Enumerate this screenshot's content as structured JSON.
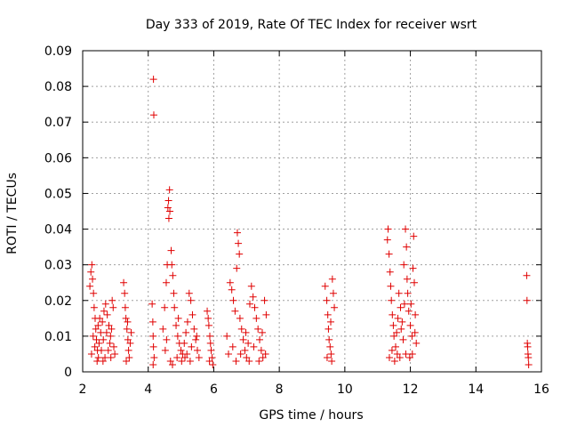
{
  "chart_data": {
    "type": "scatter",
    "title": "Day 333 of 2019, Rate Of TEC Index for receiver wsrt",
    "xlabel": "GPS time / hours",
    "ylabel": "ROTI / TECUs",
    "xlim": [
      2,
      16
    ],
    "ylim": [
      0,
      0.09
    ],
    "xticks": [
      2,
      4,
      6,
      8,
      10,
      12,
      14,
      16
    ],
    "xtick_labels": [
      "2",
      "4",
      "6",
      "8",
      "10",
      "12",
      "14",
      "16"
    ],
    "yticks": [
      0,
      0.01,
      0.02,
      0.03,
      0.04,
      0.05,
      0.06,
      0.07,
      0.08,
      0.09
    ],
    "ytick_labels": [
      "0",
      "0.01",
      "0.02",
      "0.03",
      "0.04",
      "0.05",
      "0.06",
      "0.07",
      "0.08",
      "0.09"
    ],
    "grid": true,
    "marker": "+",
    "series": [
      {
        "name": "ROTI",
        "color": "#e00000",
        "points": [
          [
            2.22,
            0.024
          ],
          [
            2.25,
            0.028
          ],
          [
            2.28,
            0.03
          ],
          [
            2.3,
            0.026
          ],
          [
            2.33,
            0.022
          ],
          [
            2.35,
            0.018
          ],
          [
            2.38,
            0.015
          ],
          [
            2.4,
            0.012
          ],
          [
            2.42,
            0.009
          ],
          [
            2.45,
            0.006
          ],
          [
            2.48,
            0.004
          ],
          [
            2.5,
            0.008
          ],
          [
            2.55,
            0.011
          ],
          [
            2.6,
            0.014
          ],
          [
            2.65,
            0.017
          ],
          [
            2.7,
            0.019
          ],
          [
            2.75,
            0.016
          ],
          [
            2.8,
            0.013
          ],
          [
            2.85,
            0.01
          ],
          [
            2.9,
            0.02
          ],
          [
            2.93,
            0.018
          ],
          [
            2.95,
            0.007
          ],
          [
            2.98,
            0.005
          ],
          [
            2.27,
            0.005
          ],
          [
            2.32,
            0.01
          ],
          [
            2.37,
            0.007
          ],
          [
            2.47,
            0.013
          ],
          [
            2.57,
            0.006
          ],
          [
            2.63,
            0.009
          ],
          [
            2.68,
            0.004
          ],
          [
            2.73,
            0.011
          ],
          [
            2.78,
            0.006
          ],
          [
            2.83,
            0.008
          ],
          [
            2.88,
            0.012
          ],
          [
            2.52,
            0.015
          ],
          [
            2.44,
            0.003
          ],
          [
            2.62,
            0.003
          ],
          [
            2.86,
            0.004
          ],
          [
            3.25,
            0.025
          ],
          [
            3.28,
            0.022
          ],
          [
            3.3,
            0.018
          ],
          [
            3.32,
            0.015
          ],
          [
            3.35,
            0.012
          ],
          [
            3.38,
            0.009
          ],
          [
            3.4,
            0.006
          ],
          [
            3.42,
            0.004
          ],
          [
            3.45,
            0.008
          ],
          [
            3.48,
            0.011
          ],
          [
            3.33,
            0.003
          ],
          [
            3.37,
            0.014
          ],
          [
            4.12,
            0.019
          ],
          [
            4.14,
            0.014
          ],
          [
            4.15,
            0.01
          ],
          [
            4.16,
            0.007
          ],
          [
            4.18,
            0.004
          ],
          [
            4.15,
            0.002
          ],
          [
            4.16,
            0.082
          ],
          [
            4.17,
            0.072
          ],
          [
            4.45,
            0.012
          ],
          [
            4.5,
            0.018
          ],
          [
            4.55,
            0.025
          ],
          [
            4.58,
            0.03
          ],
          [
            4.6,
            0.046
          ],
          [
            4.62,
            0.048
          ],
          [
            4.65,
            0.051
          ],
          [
            4.63,
            0.043
          ],
          [
            4.66,
            0.045
          ],
          [
            4.7,
            0.034
          ],
          [
            4.72,
            0.03
          ],
          [
            4.75,
            0.027
          ],
          [
            4.78,
            0.022
          ],
          [
            4.8,
            0.018
          ],
          [
            4.85,
            0.013
          ],
          [
            4.9,
            0.01
          ],
          [
            4.95,
            0.008
          ],
          [
            5.0,
            0.006
          ],
          [
            5.05,
            0.005
          ],
          [
            5.1,
            0.008
          ],
          [
            5.15,
            0.011
          ],
          [
            5.2,
            0.014
          ],
          [
            5.25,
            0.022
          ],
          [
            5.3,
            0.02
          ],
          [
            5.35,
            0.016
          ],
          [
            5.4,
            0.012
          ],
          [
            5.45,
            0.009
          ],
          [
            5.5,
            0.006
          ],
          [
            5.55,
            0.004
          ],
          [
            4.68,
            0.003
          ],
          [
            4.74,
            0.002
          ],
          [
            4.88,
            0.004
          ],
          [
            5.02,
            0.003
          ],
          [
            5.18,
            0.005
          ],
          [
            5.32,
            0.007
          ],
          [
            5.48,
            0.01
          ],
          [
            4.52,
            0.006
          ],
          [
            4.56,
            0.009
          ],
          [
            4.92,
            0.015
          ],
          [
            5.12,
            0.004
          ],
          [
            5.28,
            0.003
          ],
          [
            5.8,
            0.017
          ],
          [
            5.83,
            0.015
          ],
          [
            5.85,
            0.013
          ],
          [
            5.88,
            0.01
          ],
          [
            5.9,
            0.008
          ],
          [
            5.92,
            0.006
          ],
          [
            5.95,
            0.004
          ],
          [
            5.97,
            0.002
          ],
          [
            5.87,
            0.003
          ],
          [
            6.4,
            0.01
          ],
          [
            6.5,
            0.025
          ],
          [
            6.55,
            0.023
          ],
          [
            6.6,
            0.02
          ],
          [
            6.65,
            0.017
          ],
          [
            6.7,
            0.029
          ],
          [
            6.72,
            0.039
          ],
          [
            6.75,
            0.036
          ],
          [
            6.78,
            0.033
          ],
          [
            6.8,
            0.015
          ],
          [
            6.85,
            0.012
          ],
          [
            6.9,
            0.009
          ],
          [
            6.95,
            0.006
          ],
          [
            7.0,
            0.004
          ],
          [
            7.05,
            0.008
          ],
          [
            7.1,
            0.019
          ],
          [
            7.15,
            0.024
          ],
          [
            7.2,
            0.021
          ],
          [
            7.25,
            0.018
          ],
          [
            7.3,
            0.015
          ],
          [
            7.35,
            0.012
          ],
          [
            7.4,
            0.009
          ],
          [
            7.45,
            0.006
          ],
          [
            7.5,
            0.004
          ],
          [
            7.55,
            0.02
          ],
          [
            7.6,
            0.016
          ],
          [
            6.45,
            0.005
          ],
          [
            6.58,
            0.007
          ],
          [
            6.68,
            0.003
          ],
          [
            6.82,
            0.005
          ],
          [
            6.98,
            0.011
          ],
          [
            7.08,
            0.003
          ],
          [
            7.22,
            0.007
          ],
          [
            7.38,
            0.003
          ],
          [
            7.48,
            0.011
          ],
          [
            7.58,
            0.005
          ],
          [
            9.4,
            0.024
          ],
          [
            9.45,
            0.02
          ],
          [
            9.48,
            0.016
          ],
          [
            9.5,
            0.012
          ],
          [
            9.52,
            0.009
          ],
          [
            9.55,
            0.007
          ],
          [
            9.58,
            0.005
          ],
          [
            9.6,
            0.003
          ],
          [
            9.62,
            0.026
          ],
          [
            9.65,
            0.022
          ],
          [
            9.68,
            0.018
          ],
          [
            9.46,
            0.004
          ],
          [
            9.57,
            0.014
          ],
          [
            11.3,
            0.037
          ],
          [
            11.32,
            0.04
          ],
          [
            11.35,
            0.033
          ],
          [
            11.38,
            0.028
          ],
          [
            11.4,
            0.024
          ],
          [
            11.42,
            0.02
          ],
          [
            11.45,
            0.016
          ],
          [
            11.48,
            0.013
          ],
          [
            11.5,
            0.01
          ],
          [
            11.55,
            0.007
          ],
          [
            11.6,
            0.005
          ],
          [
            11.65,
            0.022
          ],
          [
            11.7,
            0.018
          ],
          [
            11.75,
            0.014
          ],
          [
            11.8,
            0.03
          ],
          [
            11.85,
            0.04
          ],
          [
            11.88,
            0.035
          ],
          [
            11.9,
            0.026
          ],
          [
            11.92,
            0.022
          ],
          [
            11.95,
            0.017
          ],
          [
            12.0,
            0.013
          ],
          [
            12.05,
            0.01
          ],
          [
            12.08,
            0.029
          ],
          [
            12.1,
            0.038
          ],
          [
            12.12,
            0.025
          ],
          [
            12.15,
            0.016
          ],
          [
            12.18,
            0.008
          ],
          [
            11.36,
            0.004
          ],
          [
            11.44,
            0.006
          ],
          [
            11.52,
            0.003
          ],
          [
            11.58,
            0.011
          ],
          [
            11.68,
            0.004
          ],
          [
            11.78,
            0.009
          ],
          [
            11.86,
            0.005
          ],
          [
            11.98,
            0.004
          ],
          [
            12.06,
            0.005
          ],
          [
            12.14,
            0.011
          ],
          [
            11.62,
            0.015
          ],
          [
            11.72,
            0.012
          ],
          [
            11.82,
            0.019
          ],
          [
            12.02,
            0.019
          ],
          [
            15.55,
            0.027
          ],
          [
            15.56,
            0.02
          ],
          [
            15.57,
            0.008
          ],
          [
            15.58,
            0.007
          ],
          [
            15.59,
            0.005
          ],
          [
            15.6,
            0.004
          ],
          [
            15.61,
            0.002
          ]
        ]
      }
    ]
  }
}
